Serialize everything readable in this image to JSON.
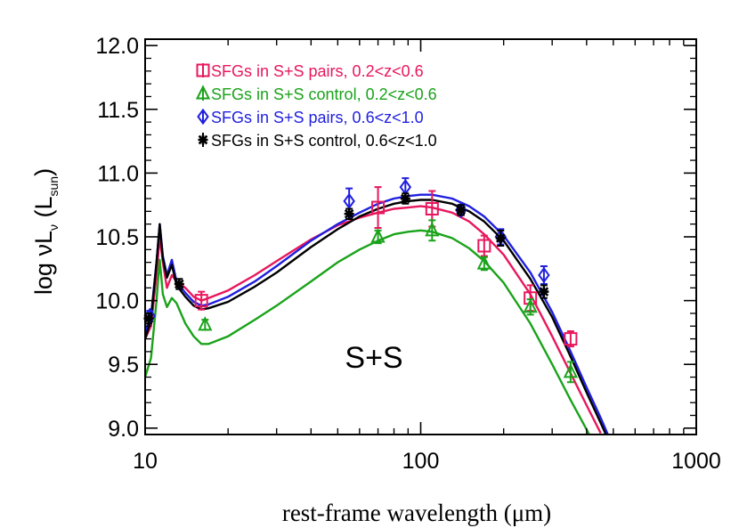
{
  "chart_data": {
    "type": "scatter",
    "xscale": "log",
    "xlim": [
      10,
      1000
    ],
    "ylim": [
      8.95,
      12.05
    ],
    "xticks": [
      10,
      100,
      1000
    ],
    "xtick_labels": [
      "10",
      "100",
      "1000"
    ],
    "yticks": [
      9.0,
      9.5,
      10.0,
      10.5,
      11.0,
      11.5,
      12.0
    ],
    "ytick_labels": [
      "9.0",
      "9.5",
      "10.0",
      "10.5",
      "11.0",
      "11.5",
      "12.0"
    ],
    "ylabel": {
      "prefix": "log ",
      "nu": "ν",
      "L": "L",
      "sub_nu": "ν",
      "unit_open": " (L",
      "unit_sub": "sun",
      "unit_close": ")"
    },
    "xlabel": {
      "text": "rest-frame wavelength (μm)"
    },
    "annotation": "S+S",
    "legend_position": "top-left",
    "series": [
      {
        "name": "SFGs in S+S pairs, 0.2<z<0.6",
        "color": "#e8175d",
        "marker": "square",
        "points": [
          {
            "x": 16,
            "y": 10.0,
            "err": 0.07
          },
          {
            "x": 70,
            "y": 10.73,
            "err": 0.16
          },
          {
            "x": 110,
            "y": 10.72,
            "err": 0.14
          },
          {
            "x": 170,
            "y": 10.43,
            "err": 0.08
          },
          {
            "x": 250,
            "y": 10.02,
            "err": 0.1
          },
          {
            "x": 350,
            "y": 9.7,
            "err": 0.06
          }
        ],
        "curve": [
          [
            10,
            9.7
          ],
          [
            10.5,
            9.8
          ],
          [
            11.0,
            10.2
          ],
          [
            11.3,
            10.5
          ],
          [
            11.6,
            10.3
          ],
          [
            12.0,
            10.1
          ],
          [
            12.5,
            10.2
          ],
          [
            13.0,
            10.15
          ],
          [
            14.0,
            10.1
          ],
          [
            15.0,
            10.03
          ],
          [
            16.0,
            10.0
          ],
          [
            17.0,
            10.02
          ],
          [
            20,
            10.08
          ],
          [
            25,
            10.2
          ],
          [
            30,
            10.31
          ],
          [
            40,
            10.48
          ],
          [
            50,
            10.59
          ],
          [
            60,
            10.65
          ],
          [
            70,
            10.69
          ],
          [
            80,
            10.72
          ],
          [
            90,
            10.73
          ],
          [
            100,
            10.74
          ],
          [
            110,
            10.73
          ],
          [
            130,
            10.69
          ],
          [
            150,
            10.62
          ],
          [
            170,
            10.52
          ],
          [
            200,
            10.36
          ],
          [
            250,
            10.05
          ],
          [
            300,
            9.72
          ],
          [
            350,
            9.43
          ],
          [
            400,
            9.18
          ],
          [
            450,
            8.96
          ]
        ]
      },
      {
        "name": "SFGs in S+S control, 0.2<z<0.6",
        "color": "#1aa31a",
        "marker": "triangle",
        "points": [
          {
            "x": 16.5,
            "y": 9.81,
            "err": 0.04
          },
          {
            "x": 70,
            "y": 10.5,
            "err": 0.05
          },
          {
            "x": 110,
            "y": 10.55,
            "err": 0.08
          },
          {
            "x": 170,
            "y": 10.29,
            "err": 0.05
          },
          {
            "x": 250,
            "y": 9.95,
            "err": 0.06
          },
          {
            "x": 350,
            "y": 9.44,
            "err": 0.08
          }
        ],
        "curve": [
          [
            10,
            9.4
          ],
          [
            10.5,
            9.55
          ],
          [
            11.0,
            10.0
          ],
          [
            11.3,
            10.32
          ],
          [
            11.6,
            10.05
          ],
          [
            12.0,
            9.95
          ],
          [
            12.5,
            10.02
          ],
          [
            13.0,
            9.98
          ],
          [
            14.0,
            9.82
          ],
          [
            15.0,
            9.72
          ],
          [
            16.0,
            9.66
          ],
          [
            17.0,
            9.66
          ],
          [
            20,
            9.72
          ],
          [
            25,
            9.85
          ],
          [
            30,
            9.96
          ],
          [
            40,
            10.15
          ],
          [
            50,
            10.3
          ],
          [
            60,
            10.4
          ],
          [
            70,
            10.47
          ],
          [
            80,
            10.52
          ],
          [
            90,
            10.54
          ],
          [
            100,
            10.55
          ],
          [
            110,
            10.54
          ],
          [
            130,
            10.49
          ],
          [
            150,
            10.41
          ],
          [
            170,
            10.31
          ],
          [
            200,
            10.14
          ],
          [
            250,
            9.82
          ],
          [
            300,
            9.5
          ],
          [
            350,
            9.22
          ],
          [
            400,
            8.99
          ],
          [
            420,
            8.9
          ]
        ]
      },
      {
        "name": "SFGs in S+S pairs, 0.6<z<1.0",
        "color": "#1f1fe0",
        "marker": "diamond",
        "points": [
          {
            "x": 10.4,
            "y": 9.88,
            "err": 0.04
          },
          {
            "x": 55,
            "y": 10.78,
            "err": 0.1
          },
          {
            "x": 88,
            "y": 10.89,
            "err": 0.07
          },
          {
            "x": 140,
            "y": 10.71,
            "err": 0.04
          },
          {
            "x": 195,
            "y": 10.5,
            "err": 0.06
          },
          {
            "x": 280,
            "y": 10.2,
            "err": 0.07
          }
        ],
        "curve": [
          [
            10,
            9.75
          ],
          [
            10.5,
            9.88
          ],
          [
            11.0,
            10.3
          ],
          [
            11.3,
            10.6
          ],
          [
            11.6,
            10.35
          ],
          [
            12.0,
            10.2
          ],
          [
            12.5,
            10.32
          ],
          [
            13.0,
            10.15
          ],
          [
            14.0,
            10.06
          ],
          [
            15.0,
            9.99
          ],
          [
            16.0,
            9.96
          ],
          [
            17.0,
            9.97
          ],
          [
            20,
            10.03
          ],
          [
            25,
            10.15
          ],
          [
            30,
            10.27
          ],
          [
            40,
            10.47
          ],
          [
            50,
            10.6
          ],
          [
            60,
            10.69
          ],
          [
            70,
            10.76
          ],
          [
            80,
            10.8
          ],
          [
            90,
            10.82
          ],
          [
            100,
            10.83
          ],
          [
            110,
            10.83
          ],
          [
            130,
            10.8
          ],
          [
            150,
            10.74
          ],
          [
            170,
            10.66
          ],
          [
            200,
            10.51
          ],
          [
            250,
            10.22
          ],
          [
            300,
            9.91
          ],
          [
            350,
            9.6
          ],
          [
            400,
            9.32
          ],
          [
            450,
            9.08
          ],
          [
            480,
            8.94
          ]
        ]
      },
      {
        "name": "SFGs in S+S control, 0.6<z<1.0",
        "color": "#000000",
        "marker": "asterisk",
        "points": [
          {
            "x": 10.3,
            "y": 9.86,
            "err": 0.04
          },
          {
            "x": 13.3,
            "y": 10.13,
            "err": 0.04
          },
          {
            "x": 55,
            "y": 10.68,
            "err": 0.04
          },
          {
            "x": 88,
            "y": 10.8,
            "err": 0.04
          },
          {
            "x": 140,
            "y": 10.71,
            "err": 0.04
          },
          {
            "x": 195,
            "y": 10.49,
            "err": 0.06
          },
          {
            "x": 280,
            "y": 10.07,
            "err": 0.05
          }
        ],
        "curve": [
          [
            10,
            9.7
          ],
          [
            10.5,
            9.85
          ],
          [
            11.0,
            10.3
          ],
          [
            11.3,
            10.6
          ],
          [
            11.6,
            10.33
          ],
          [
            12.0,
            10.18
          ],
          [
            12.5,
            10.28
          ],
          [
            13.0,
            10.12
          ],
          [
            14.0,
            10.03
          ],
          [
            15.0,
            9.96
          ],
          [
            16.0,
            9.93
          ],
          [
            17.0,
            9.94
          ],
          [
            20,
            9.99
          ],
          [
            25,
            10.11
          ],
          [
            30,
            10.22
          ],
          [
            40,
            10.42
          ],
          [
            50,
            10.56
          ],
          [
            60,
            10.66
          ],
          [
            70,
            10.72
          ],
          [
            80,
            10.76
          ],
          [
            90,
            10.78
          ],
          [
            100,
            10.79
          ],
          [
            110,
            10.79
          ],
          [
            130,
            10.76
          ],
          [
            150,
            10.7
          ],
          [
            170,
            10.62
          ],
          [
            200,
            10.47
          ],
          [
            250,
            10.17
          ],
          [
            300,
            9.87
          ],
          [
            350,
            9.56
          ],
          [
            400,
            9.28
          ],
          [
            450,
            9.04
          ],
          [
            470,
            8.95
          ]
        ]
      }
    ]
  }
}
